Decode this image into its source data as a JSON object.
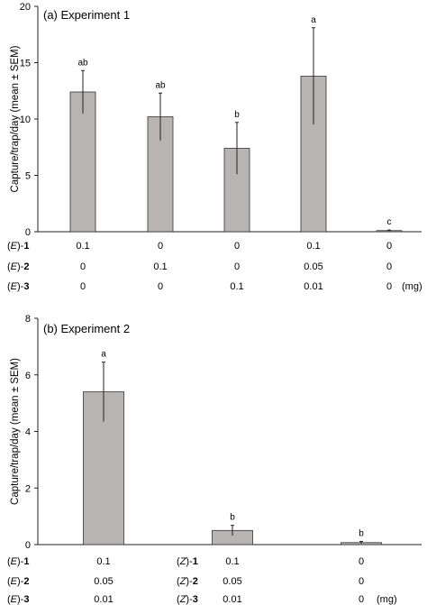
{
  "chart_data": [
    {
      "type": "bar",
      "title": "(a) Experiment 1",
      "ylabel": "Capture/trap/day (mean ± SEM)",
      "ylim": [
        0,
        20
      ],
      "yticks": [
        0,
        5,
        10,
        15,
        20
      ],
      "grid": false,
      "bar_color": "#b8b4b4",
      "values": [
        12.4,
        10.2,
        7.4,
        13.8,
        0.1
      ],
      "errors": [
        1.9,
        2.1,
        2.3,
        4.3,
        0.05
      ],
      "significance": [
        "ab",
        "ab",
        "b",
        "a",
        "c"
      ],
      "treatment_rows": [
        {
          "prefix": "(",
          "italic": "E",
          "suffix": ")-",
          "bold": "1",
          "values": [
            "0.1",
            "0",
            "0",
            "0.1",
            "0"
          ]
        },
        {
          "prefix": "(",
          "italic": "E",
          "suffix": ")-",
          "bold": "2",
          "values": [
            "0",
            "0.1",
            "0",
            "0.05",
            "0"
          ]
        },
        {
          "prefix": "(",
          "italic": "E",
          "suffix": ")-",
          "bold": "3",
          "values": [
            "0",
            "0",
            "0.1",
            "0.01",
            "0"
          ]
        }
      ],
      "unit": "(mg)"
    },
    {
      "type": "bar",
      "title": "(b) Experiment 2",
      "ylabel": "Capture/trap/day (mean ± SEM)",
      "ylim": [
        0,
        8
      ],
      "yticks": [
        0,
        2,
        4,
        6,
        8
      ],
      "grid": false,
      "bar_color": "#b8b4b4",
      "values": [
        5.4,
        0.5,
        0.07
      ],
      "errors": [
        1.05,
        0.18,
        0.04
      ],
      "significance": [
        "a",
        "b",
        "b"
      ],
      "treatment_rows": [
        {
          "cols": [
            {
              "prefix": "(",
              "italic": "E",
              "suffix": ")-",
              "bold": "1",
              "value": "0.1"
            },
            {
              "prefix": "(",
              "italic": "Z",
              "suffix": ")-",
              "bold": "1",
              "value": "0.1"
            },
            {
              "value": "0"
            }
          ]
        },
        {
          "cols": [
            {
              "prefix": "(",
              "italic": "E",
              "suffix": ")-",
              "bold": "2",
              "value": "0.05"
            },
            {
              "prefix": "(",
              "italic": "Z",
              "suffix": ")-",
              "bold": "2",
              "value": "0.05"
            },
            {
              "value": "0"
            }
          ]
        },
        {
          "cols": [
            {
              "prefix": "(",
              "italic": "E",
              "suffix": ")-",
              "bold": "3",
              "value": "0.01"
            },
            {
              "prefix": "(",
              "italic": "Z",
              "suffix": ")-",
              "bold": "3",
              "value": "0.01"
            },
            {
              "value": "0"
            }
          ]
        }
      ],
      "unit": "(mg)"
    }
  ]
}
